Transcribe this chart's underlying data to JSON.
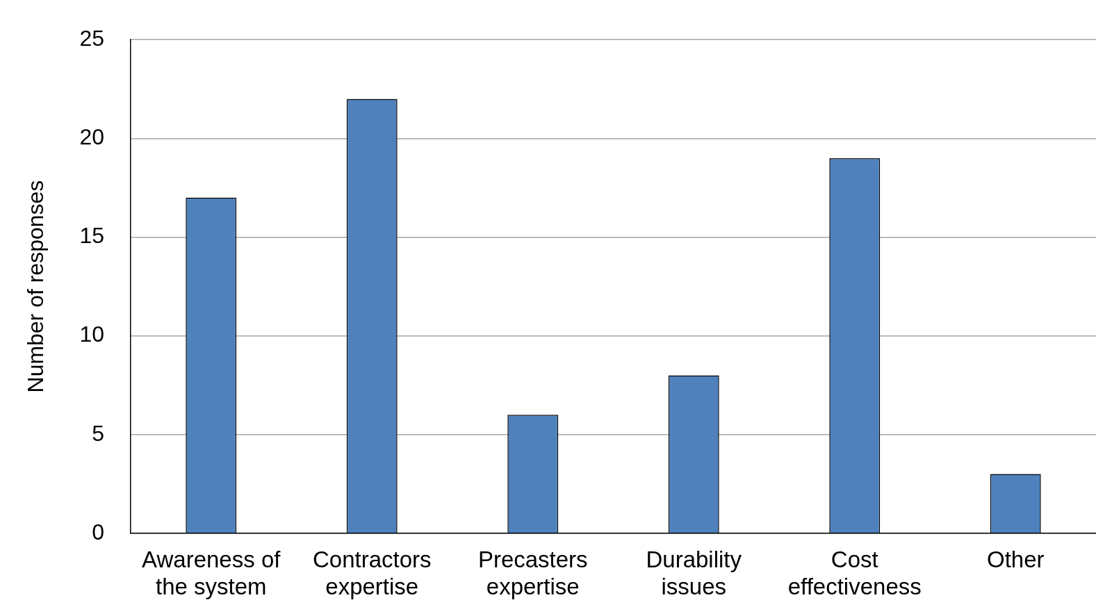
{
  "chart_data": {
    "type": "bar",
    "ylabel": "Number of responses",
    "categories": [
      "Awareness of the system",
      "Contractors expertise",
      "Precasters expertise",
      "Durability issues",
      "Cost effectiveness",
      "Other"
    ],
    "values": [
      17,
      22,
      6,
      8,
      19,
      3
    ],
    "color": "#4f81bd",
    "ylim": [
      0,
      25
    ],
    "yticks": [
      0,
      5,
      10,
      15,
      20,
      25
    ],
    "grid": "y",
    "legend": false
  }
}
